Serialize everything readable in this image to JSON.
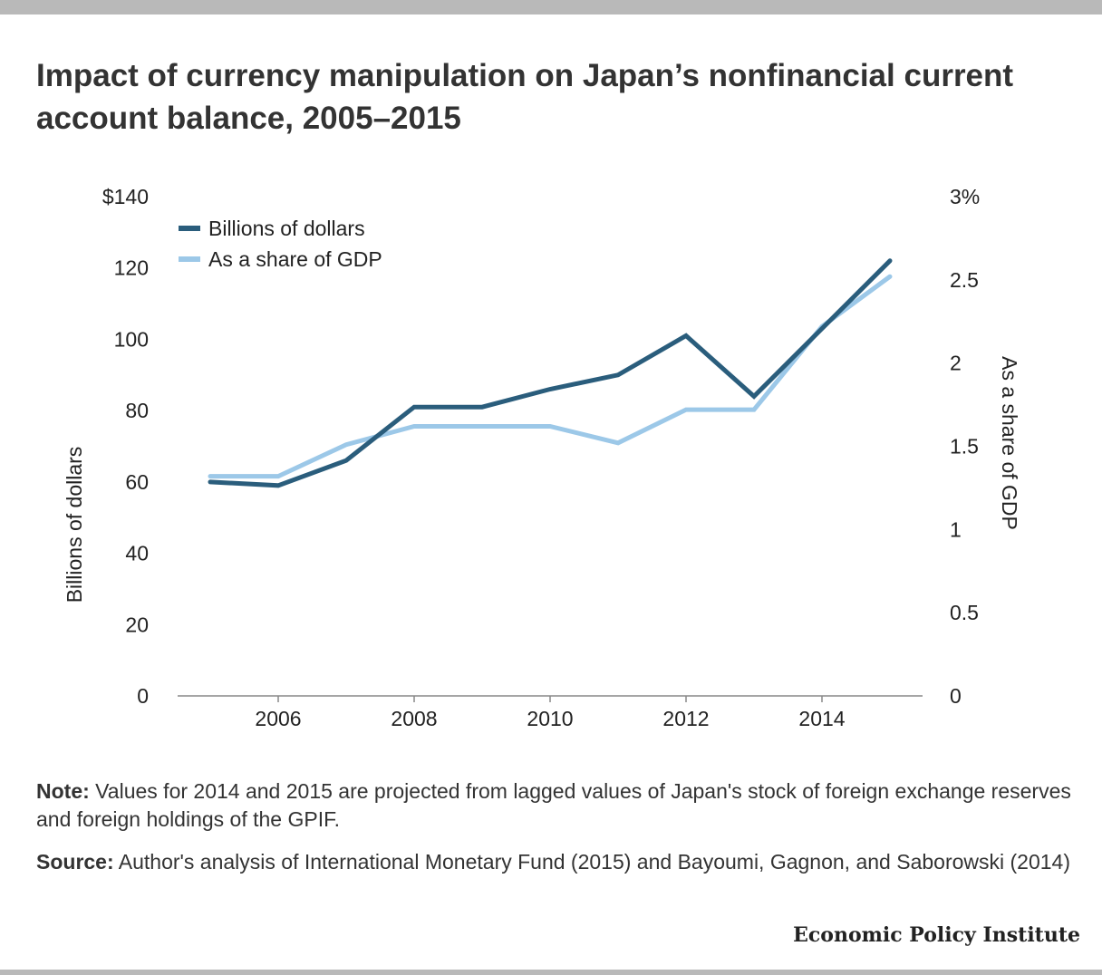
{
  "title": "Impact of currency manipulation on Japan’s nonfinancial current account balance, 2005–2015",
  "note_label": "Note:",
  "note_text": "Values for 2014 and 2015 are projected from lagged values of Japan's stock of foreign exchange reserves and foreign holdings of the GPIF.",
  "source_label": "Source:",
  "source_text": "Author's analysis of International Monetary Fund (2015) and Bayoumi, Gagnon, and Saborowski (2014)",
  "brand": "Economic Policy Institute",
  "chart_data": {
    "type": "line",
    "x": [
      2005,
      2006,
      2007,
      2008,
      2009,
      2010,
      2011,
      2012,
      2013,
      2014,
      2015
    ],
    "x_ticks": [
      2006,
      2008,
      2010,
      2012,
      2014
    ],
    "x_tick_labels": [
      "2006",
      "2008",
      "2010",
      "2012",
      "2014"
    ],
    "ylabel_left": "Billions of dollars",
    "ylabel_right": "As a share of GDP",
    "ylim_left": [
      0,
      140
    ],
    "ylim_right": [
      0,
      3
    ],
    "y_ticks_left": [
      0,
      20,
      40,
      60,
      80,
      100,
      120,
      140
    ],
    "y_tick_labels_left": [
      "0",
      "20",
      "40",
      "60",
      "80",
      "100",
      "120",
      "$140"
    ],
    "y_ticks_right": [
      0,
      0.5,
      1,
      1.5,
      2,
      2.5,
      3
    ],
    "y_tick_labels_right": [
      "0",
      "0.5",
      "1",
      "1.5",
      "2",
      "2.5",
      "3%"
    ],
    "grid": false,
    "legend_position": "top-left",
    "series": [
      {
        "name": "Billions of dollars",
        "axis": "left",
        "color": "#2a5d7c",
        "values": [
          60,
          59,
          66,
          81,
          81,
          86,
          90,
          101,
          84,
          103,
          122
        ]
      },
      {
        "name": "As a share of GDP",
        "axis": "right",
        "color": "#9cc8e8",
        "values": [
          1.32,
          1.32,
          1.51,
          1.62,
          1.62,
          1.62,
          1.52,
          1.72,
          1.72,
          2.22,
          2.52
        ]
      }
    ]
  }
}
